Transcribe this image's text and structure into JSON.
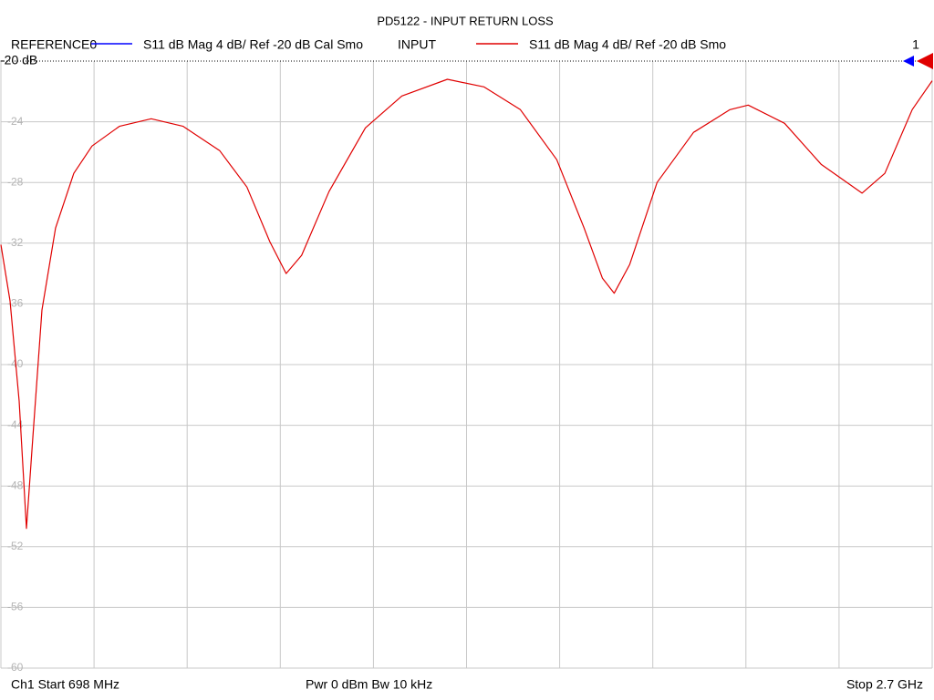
{
  "chart_data": {
    "type": "line",
    "title": "PD5122 - INPUT RETURN LOSS",
    "marker_label": "1",
    "footer": {
      "start": "Ch1  Start  698 MHz",
      "power": "Pwr  0 dBm  Bw  10 kHz",
      "stop": "Stop  2.7 GHz"
    },
    "xlim": [
      698,
      2700
    ],
    "xticks": [
      698,
      898.2,
      1098.4,
      1298.6,
      1498.8,
      1699,
      1899.2,
      2099.4,
      2299.6,
      2499.8,
      2700
    ],
    "ylim": [
      -60,
      -20
    ],
    "yticks": [
      {
        "value": -20,
        "label": "-20 dB"
      },
      -24,
      -28,
      -32,
      -36,
      -40,
      -44,
      -48,
      -52,
      -56,
      -60
    ],
    "grid": true,
    "x": [
      698,
      717.6,
      737.2,
      752.9,
      766.6,
      786.2,
      815.5,
      854.7,
      893.9,
      952.7,
      1021.2,
      1089.8,
      1168.2,
      1226.9,
      1276.0,
      1311.2,
      1344.5,
      1403.3,
      1481.6,
      1560.0,
      1657.9,
      1736.3,
      1814.6,
      1893.0,
      1951.8,
      1991.0,
      2016.5,
      2049.8,
      2108.6,
      2186.9,
      2265.3,
      2304.5,
      2382.8,
      2461.2,
      2549.3,
      2598.3,
      2657.0,
      2700
    ],
    "series": [
      {
        "name": "REFERENCE0",
        "color": "#0000ff",
        "format": "S11  dB Mag  4 dB/ Ref -20 dB  Cal Smo"
      },
      {
        "name": "INPUT",
        "color": "#e00000",
        "format": "S11  dB Mag  4 dB/ Ref -20 dB  Smo",
        "values": [
          -32.1,
          -35.8,
          -42.4,
          -50.8,
          -44.8,
          -36.4,
          -31.0,
          -27.4,
          -25.6,
          -24.3,
          -23.8,
          -24.3,
          -25.9,
          -28.3,
          -31.9,
          -34.0,
          -32.8,
          -28.6,
          -24.4,
          -22.3,
          -21.2,
          -21.7,
          -23.2,
          -26.5,
          -31.0,
          -34.3,
          -35.3,
          -33.4,
          -28.0,
          -24.7,
          -23.2,
          -22.9,
          -24.1,
          -26.8,
          -28.7,
          -27.4,
          -23.2,
          -21.3
        ]
      }
    ]
  }
}
